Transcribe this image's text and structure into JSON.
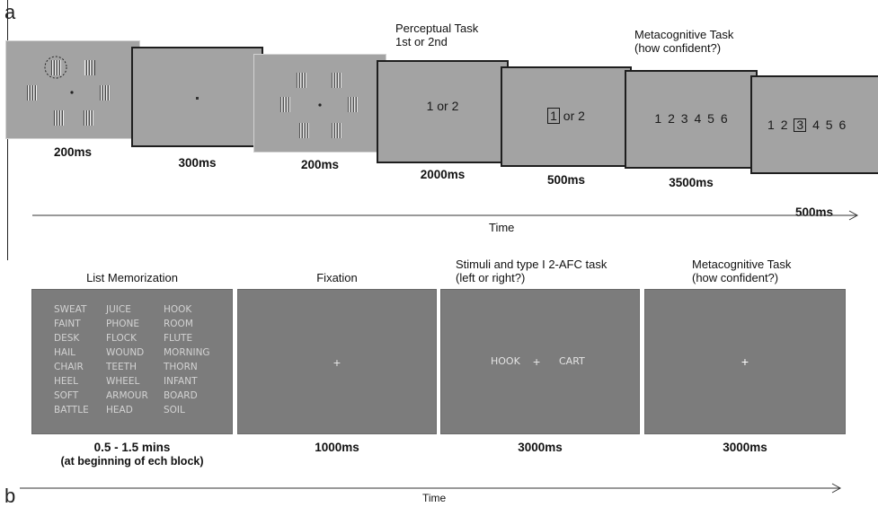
{
  "panel_a": {
    "label": "a",
    "frames": [
      {
        "duration": "200ms"
      },
      {
        "duration": "300ms"
      },
      {
        "duration": "200ms"
      },
      {
        "title_line1": "Perceptual Task",
        "title_line2": "1st or 2nd",
        "text": "1 or 2",
        "duration": "2000ms"
      },
      {
        "selected": "1",
        "rest": "or 2",
        "duration": "500ms"
      },
      {
        "title_line1": "Metacognitive Task",
        "title_line2": "(how confident?)",
        "scale": [
          "1",
          "2",
          "3",
          "4",
          "5",
          "6"
        ],
        "duration": "3500ms"
      },
      {
        "scale_before": [
          "1",
          "2"
        ],
        "selected": "3",
        "scale_after": [
          "4",
          "5",
          "6"
        ],
        "duration": "500ms"
      }
    ],
    "time_label": "Time"
  },
  "panel_b": {
    "label": "b",
    "frames": [
      {
        "title": "List Memorization",
        "words": [
          [
            "SWEAT",
            "JUICE",
            "HOOK"
          ],
          [
            "FAINT",
            "PHONE",
            "ROOM"
          ],
          [
            "DESK",
            "FLOCK",
            "FLUTE"
          ],
          [
            "HAIL",
            "WOUND",
            "MORNING"
          ],
          [
            "CHAIR",
            "TEETH",
            "THORN"
          ],
          [
            "HEEL",
            "WHEEL",
            "INFANT"
          ],
          [
            "SOFT",
            "ARMOUR",
            "BOARD"
          ],
          [
            "BATTLE",
            "HEAD",
            "SOIL"
          ]
        ],
        "duration": "0.5 - 1.5 mins",
        "duration_note": "(at beginning of ech block)"
      },
      {
        "title": "Fixation",
        "fixation": "+",
        "duration": "1000ms"
      },
      {
        "title_line1": "Stimuli and type I 2-AFC task",
        "title_line2": "(left or right?)",
        "left_word": "HOOK",
        "fixation": "+",
        "right_word": "CART",
        "duration": "3000ms"
      },
      {
        "title_line1": "Metacognitive Task",
        "title_line2": "(how confident?)",
        "fixation": "+",
        "duration": "3000ms"
      }
    ],
    "time_label": "Time"
  }
}
